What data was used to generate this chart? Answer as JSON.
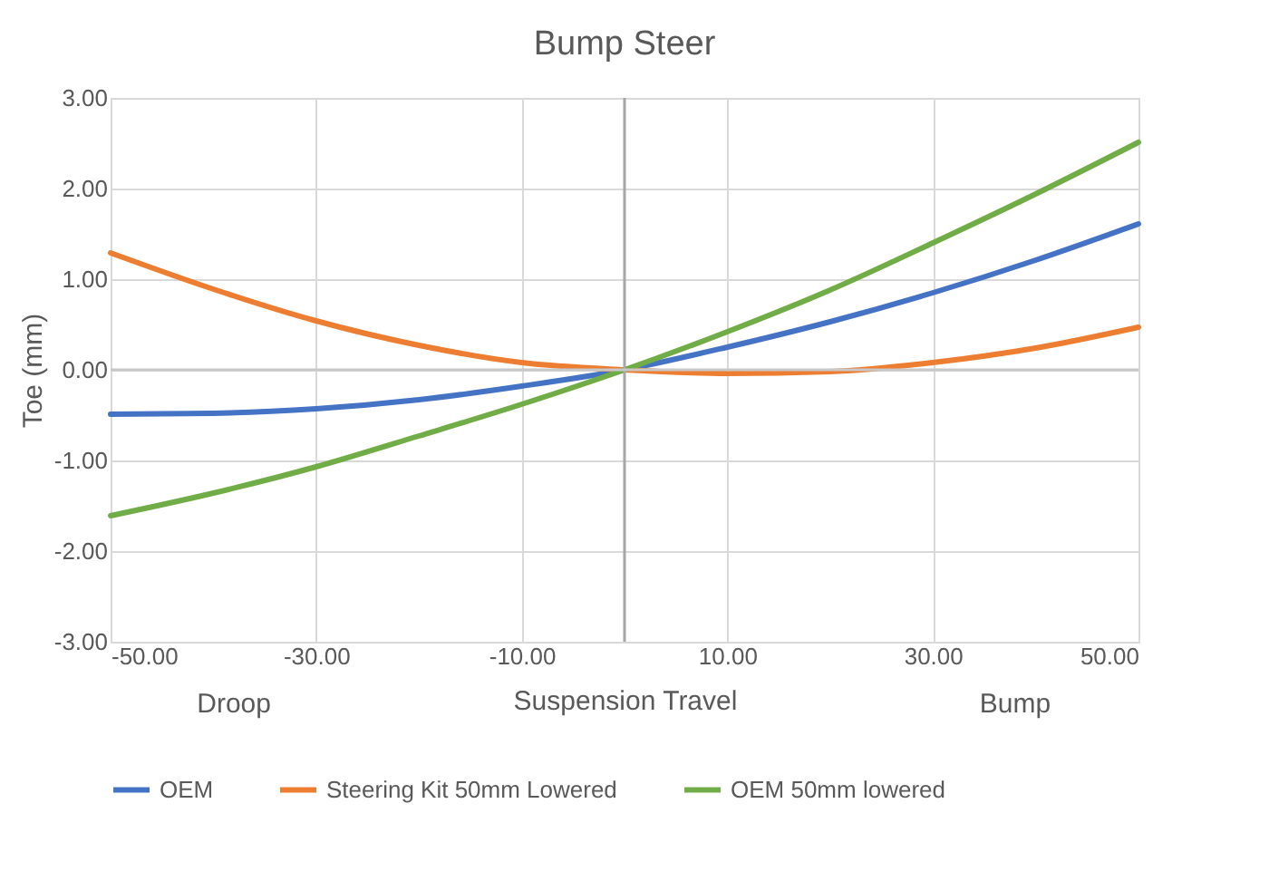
{
  "chart_data": {
    "type": "line",
    "title": "Bump Steer",
    "xlabel": "Suspension Travel",
    "ylabel": "Toe (mm)",
    "annotations": [
      "Droop",
      "Bump"
    ],
    "x": [
      -50,
      -40,
      -30,
      -20,
      -10,
      0,
      10,
      20,
      30,
      40,
      50
    ],
    "series": [
      {
        "name": "OEM",
        "color": "#4472c4",
        "values": [
          -0.49,
          -0.48,
          -0.43,
          -0.33,
          -0.18,
          0,
          0.25,
          0.53,
          0.85,
          1.21,
          1.61
        ]
      },
      {
        "name": "Steering Kit 50mm Lowered",
        "color": "#ed7d31",
        "values": [
          1.29,
          0.89,
          0.54,
          0.27,
          0.08,
          0,
          -0.04,
          -0.02,
          0.08,
          0.24,
          0.47
        ]
      },
      {
        "name": "OEM 50mm lowered",
        "color": "#70ad47",
        "values": [
          -1.61,
          -1.36,
          -1.07,
          -0.73,
          -0.38,
          0,
          0.42,
          0.88,
          1.4,
          1.94,
          2.51
        ]
      }
    ],
    "xlim": [
      -50,
      50
    ],
    "xticks": [
      {
        "value": -50,
        "label": "-50.00"
      },
      {
        "value": -30,
        "label": "-30.00"
      },
      {
        "value": -10,
        "label": "-10.00"
      },
      {
        "value": 10,
        "label": "10.00"
      },
      {
        "value": 30,
        "label": "30.00"
      },
      {
        "value": 50,
        "label": "50.00"
      }
    ],
    "ylim": [
      -3,
      3
    ],
    "yticks": [
      {
        "value": -3,
        "label": "-3.00"
      },
      {
        "value": -2,
        "label": "-2.00"
      },
      {
        "value": -1,
        "label": "-1.00"
      },
      {
        "value": 0,
        "label": "0.00"
      },
      {
        "value": 1,
        "label": "1.00"
      },
      {
        "value": 2,
        "label": "2.00"
      },
      {
        "value": 3,
        "label": "3.00"
      }
    ],
    "ref_lines": [
      {
        "axis": "x",
        "value": 0,
        "color": "#a6a6a6"
      },
      {
        "axis": "y",
        "value": 0,
        "color": "#c8c8c8"
      }
    ],
    "grid": true,
    "legend": "bottom",
    "marker": "none",
    "line_style": "solid"
  }
}
